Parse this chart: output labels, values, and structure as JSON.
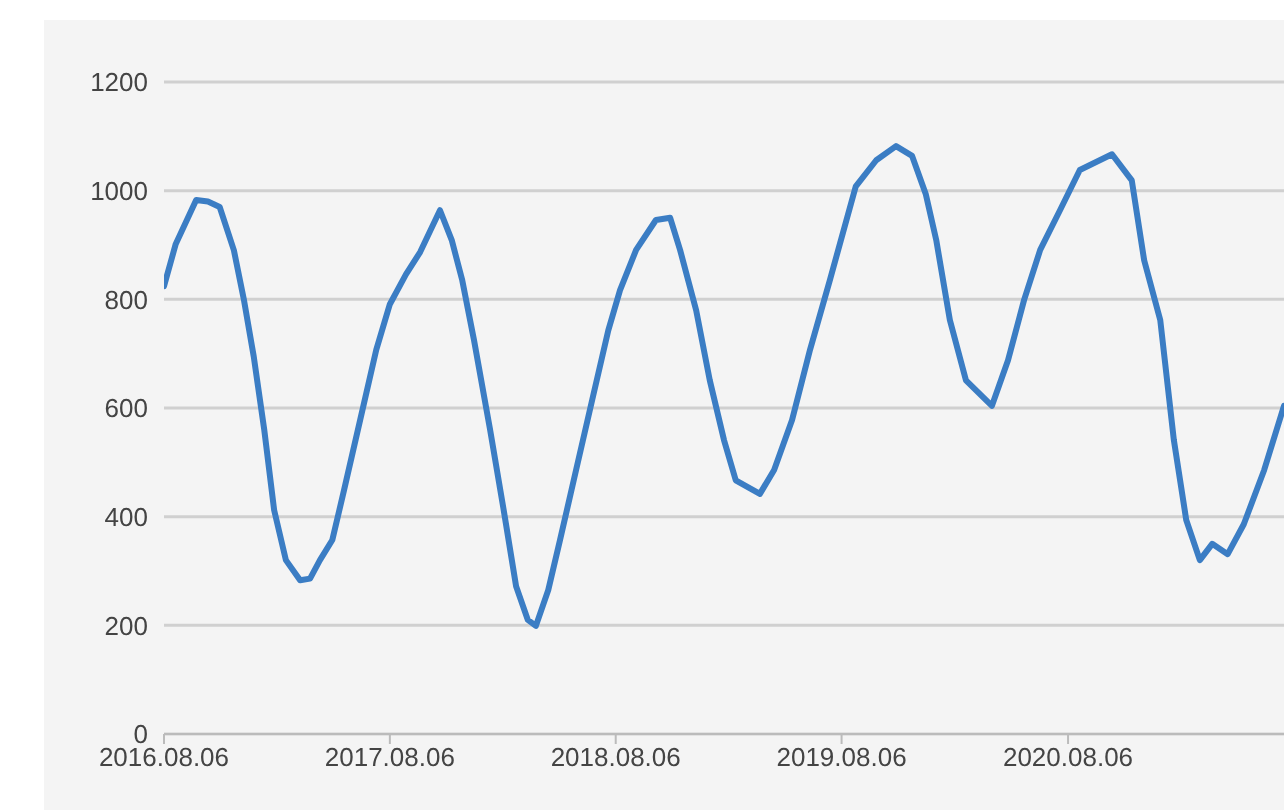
{
  "chart_data": {
    "type": "line",
    "x": [
      "2016-08-06",
      "2016-08-25",
      "2016-09-27",
      "2016-10-16",
      "2016-11-04",
      "2016-11-27",
      "2016-12-13",
      "2016-12-29",
      "2017-01-15",
      "2017-01-31",
      "2017-02-19",
      "2017-03-14",
      "2017-03-30",
      "2017-04-15",
      "2017-05-05",
      "2017-05-24",
      "2017-06-19",
      "2017-07-15",
      "2017-08-06",
      "2017-09-01",
      "2017-09-24",
      "2017-10-26",
      "2017-11-14",
      "2017-12-01",
      "2017-12-20",
      "2018-01-15",
      "2018-02-06",
      "2018-02-26",
      "2018-03-17",
      "2018-03-30",
      "2018-04-19",
      "2018-05-08",
      "2018-06-03",
      "2018-06-29",
      "2018-07-25",
      "2018-08-13",
      "2018-09-08",
      "2018-10-10",
      "2018-11-02",
      "2018-11-18",
      "2018-12-14",
      "2019-01-05",
      "2019-01-28",
      "2019-02-16",
      "2019-03-27",
      "2019-04-19",
      "2019-05-18",
      "2019-06-16",
      "2019-07-18",
      "2019-08-29",
      "2019-10-01",
      "2019-11-02",
      "2019-11-28",
      "2019-12-20",
      "2020-01-06",
      "2020-01-28",
      "2020-02-23",
      "2020-04-05",
      "2020-05-01",
      "2020-05-27",
      "2020-06-22",
      "2020-07-24",
      "2020-08-25",
      "2020-10-16",
      "2020-11-17",
      "2020-12-07",
      "2021-01-02",
      "2021-01-24",
      "2021-02-13",
      "2021-03-07",
      "2021-03-27",
      "2021-04-21",
      "2021-05-17",
      "2021-06-19",
      "2021-07-21"
    ],
    "series": [
      {
        "color": "#3b7dc4",
        "values": [
          824,
          902,
          983,
          980,
          970,
          890,
          800,
          695,
          560,
          412,
          320,
          283,
          286,
          320,
          357,
          449,
          578,
          707,
          791,
          846,
          887,
          964,
          909,
          835,
          725,
          560,
          412,
          272,
          210,
          199,
          265,
          357,
          486,
          615,
          743,
          817,
          891,
          946,
          950,
          891,
          780,
          651,
          541,
          467,
          442,
          486,
          578,
          707,
          835,
          1008,
          1056,
          1082,
          1064,
          994,
          909,
          762,
          651,
          604,
          688,
          799,
          891,
          964,
          1038,
          1067,
          1019,
          872,
          762,
          541,
          394,
          320,
          350,
          331,
          386,
          486,
          604
        ]
      }
    ],
    "xlim": [
      "2016-08-06",
      "2021-07-21"
    ],
    "xticks": [
      {
        "value": "2016-08-06",
        "label": "2016.08.06"
      },
      {
        "value": "2017-08-06",
        "label": "2017.08.06"
      },
      {
        "value": "2018-08-06",
        "label": "2018.08.06"
      },
      {
        "value": "2019-08-06",
        "label": "2019.08.06"
      },
      {
        "value": "2020-08-06",
        "label": "2020.08.06"
      }
    ],
    "ylim": [
      0,
      1200
    ],
    "yticks": [
      0,
      200,
      400,
      600,
      800,
      1000,
      1200
    ],
    "grid": "y",
    "legend": false,
    "marker": "none",
    "line_style": "solid"
  }
}
